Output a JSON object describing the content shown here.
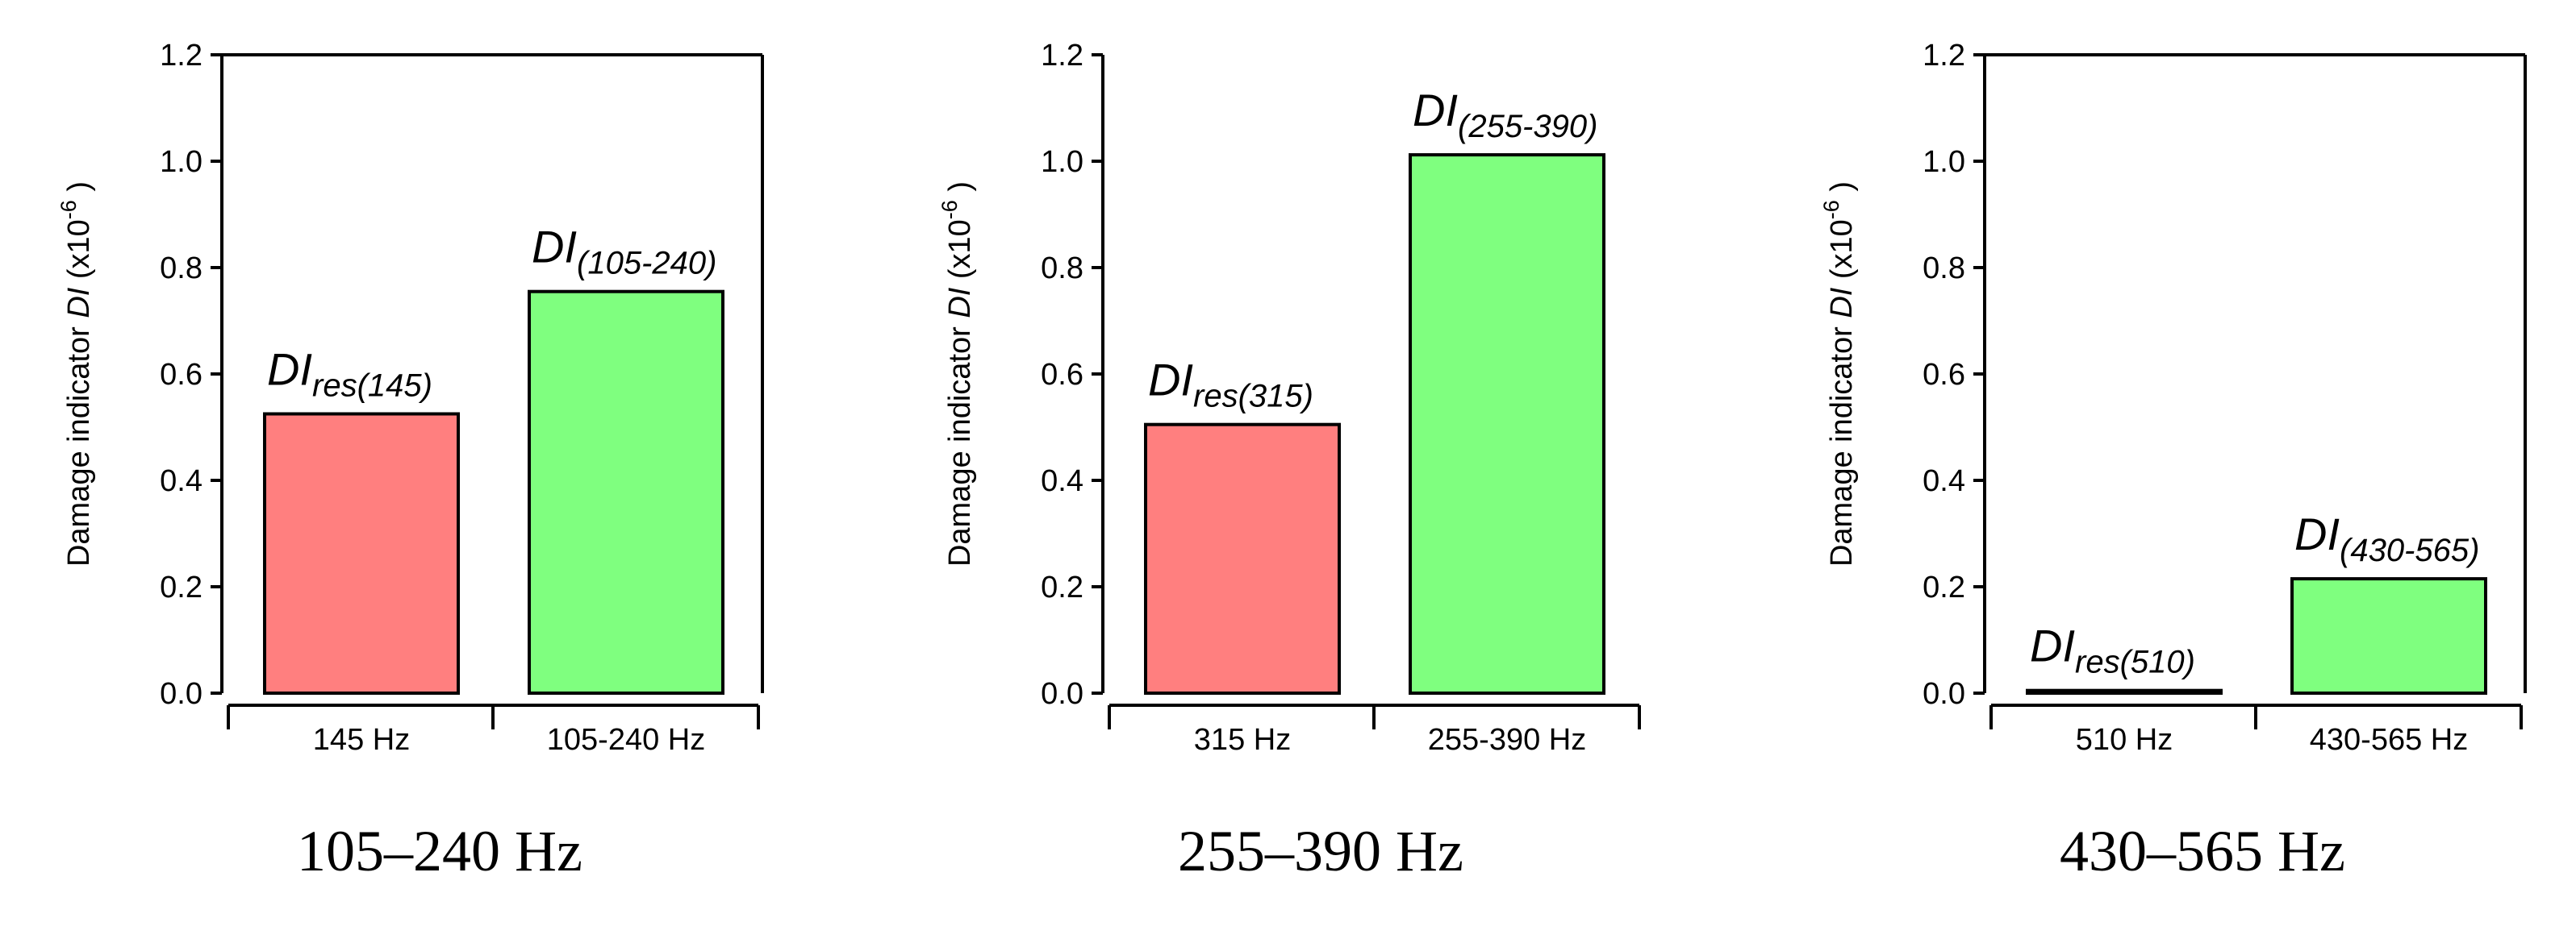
{
  "chart_data": [
    {
      "type": "bar",
      "caption": "105–240 Hz",
      "ylabel_prefix": "Damage indicator ",
      "ylabel_var": "DI",
      "ylabel_unit_open": " (x10",
      "ylabel_unit_exp": "-6",
      "ylabel_unit_close": " )",
      "ylim": [
        0,
        1.2
      ],
      "yticks": [
        "0.0",
        "0.2",
        "0.4",
        "0.6",
        "0.8",
        "1.0",
        "1.2"
      ],
      "categories": [
        "145 Hz",
        "105-240 Hz"
      ],
      "values": [
        0.525,
        0.755
      ],
      "bar_labels": [
        {
          "main": "DI",
          "sub": "res(145)"
        },
        {
          "main": "DI",
          "sub": "(105-240)"
        }
      ],
      "colors": [
        "#ff7f7f",
        "#7fff7f"
      ],
      "top_border": true
    },
    {
      "type": "bar",
      "caption": "255–390 Hz",
      "ylabel_prefix": "Damage indicator ",
      "ylabel_var": "DI",
      "ylabel_unit_open": " (x10",
      "ylabel_unit_exp": "-6",
      "ylabel_unit_close": " )",
      "ylim": [
        0,
        1.2
      ],
      "yticks": [
        "0.0",
        "0.2",
        "0.4",
        "0.6",
        "0.8",
        "1.0",
        "1.2"
      ],
      "categories": [
        "315 Hz",
        "255-390 Hz"
      ],
      "values": [
        0.505,
        1.012
      ],
      "bar_labels": [
        {
          "main": "DI",
          "sub": "res(315)"
        },
        {
          "main": "DI",
          "sub": "(255-390)"
        }
      ],
      "colors": [
        "#ff7f7f",
        "#7fff7f"
      ],
      "top_border": false
    },
    {
      "type": "bar",
      "caption": "430–565 Hz",
      "ylabel_prefix": "Damage indicator ",
      "ylabel_var": "DI",
      "ylabel_unit_open": " (x10",
      "ylabel_unit_exp": "-6",
      "ylabel_unit_close": " )",
      "ylim": [
        0,
        1.2
      ],
      "yticks": [
        "0.0",
        "0.2",
        "0.4",
        "0.6",
        "0.8",
        "1.0",
        "1.2"
      ],
      "categories": [
        "510 Hz",
        "430-565 Hz"
      ],
      "values": [
        0.005,
        0.215
      ],
      "bar_labels": [
        {
          "main": "DI",
          "sub": "res(510)"
        },
        {
          "main": "DI",
          "sub": "(430-565)"
        }
      ],
      "colors": [
        "#ff7f7f",
        "#7fff7f"
      ],
      "top_border": true
    }
  ]
}
